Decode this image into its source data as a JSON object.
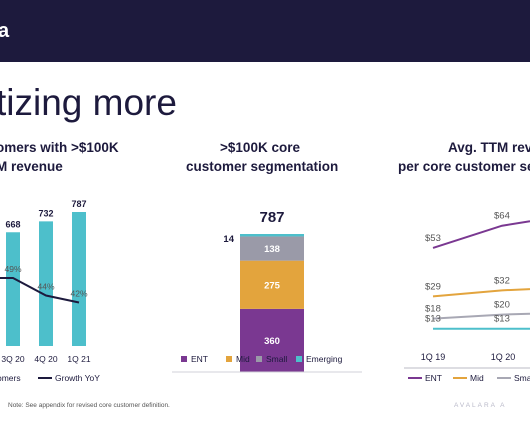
{
  "header": {
    "logo_text": "a"
  },
  "headline": "tizing more",
  "panels": {
    "left_title": [
      "omers with >$100K",
      "M revenue"
    ],
    "mid_title": [
      ">$100K core",
      "customer segmentation"
    ],
    "right_title": [
      "Avg. TTM rev",
      "per core customer se"
    ]
  },
  "footnote": "Note: See appendix for revised core customer definition.",
  "watermark": "AVALARA A",
  "colors": {
    "navy": "#1d1a3d",
    "teal": "#4dbfcb",
    "purple": "#7a3891",
    "orange": "#e3a43d",
    "gray": "#9a9aa8",
    "line_purple": "#7a3891",
    "line_gray": "#a8a8b4",
    "line_cyan": "#4dbfcb"
  },
  "chart_data": [
    {
      "type": "bar",
      "categories": [
        "3Q 20",
        "4Q 20",
        "1Q 21"
      ],
      "series": [
        {
          "name": "omers",
          "values": [
            668,
            732,
            787
          ]
        },
        {
          "name": "Growth YoY",
          "type": "line",
          "values": [
            49,
            44,
            42
          ],
          "value_labels": [
            "49%",
            "44%",
            "42%"
          ]
        }
      ],
      "legend": [
        "omers",
        "Growth YoY"
      ]
    },
    {
      "type": "bar",
      "stacked": true,
      "total_label": "787",
      "segments": [
        {
          "name": "ENT",
          "value": 360,
          "label": "360",
          "color": "#7a3891"
        },
        {
          "name": "Mid",
          "value": 275,
          "label": "275",
          "color": "#e3a43d"
        },
        {
          "name": "Small",
          "value": 138,
          "label": "138",
          "color": "#9a9aa8"
        },
        {
          "name": "Emerging",
          "value": 14,
          "label": "14",
          "color": "#4dbfcb"
        }
      ],
      "legend": [
        "ENT",
        "Mid",
        "Small",
        "Emerging"
      ]
    },
    {
      "type": "line",
      "x": [
        "1Q 19",
        "1Q 20"
      ],
      "series": [
        {
          "name": "ENT",
          "values": [
            53,
            64
          ],
          "value_labels": [
            "$53",
            "$64"
          ],
          "color": "#7a3891"
        },
        {
          "name": "Mid",
          "values": [
            29,
            32
          ],
          "value_labels": [
            "$29",
            "$32"
          ],
          "color": "#e3a43d"
        },
        {
          "name": "Sma",
          "values": [
            18,
            20
          ],
          "value_labels": [
            "$18",
            "$20"
          ],
          "color": "#a8a8b4"
        },
        {
          "name": "",
          "values": [
            13,
            13
          ],
          "value_labels": [
            "$13",
            "$13"
          ],
          "color": "#4dbfcb"
        }
      ],
      "legend": [
        "ENT",
        "Mid",
        "Sma"
      ]
    }
  ]
}
